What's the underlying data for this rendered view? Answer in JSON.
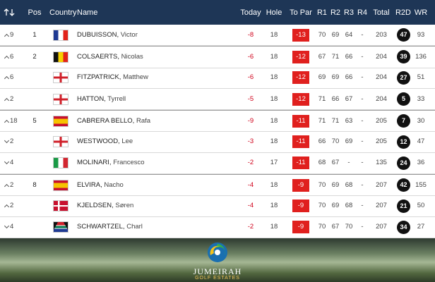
{
  "columns": [
    "Pos",
    "Country",
    "Name",
    "Today",
    "Hole",
    "To Par",
    "R1",
    "R2",
    "R3",
    "R4",
    "Total",
    "R2D",
    "WR"
  ],
  "rows": [
    {
      "trend": "up",
      "move": "9",
      "pos": "1",
      "flag": "fr",
      "surname": "DUBUISSON,",
      "given": "Victor",
      "today": "-8",
      "hole": "18",
      "to_par": "-13",
      "rounds": [
        "70",
        "69",
        "64",
        "-"
      ],
      "total": "203",
      "r2d": "47",
      "wr": "93"
    },
    {
      "trend": "up",
      "move": "6",
      "pos": "2",
      "flag": "be",
      "surname": "COLSAERTS,",
      "given": "Nicolas",
      "today": "-6",
      "hole": "18",
      "to_par": "-12",
      "rounds": [
        "67",
        "71",
        "66",
        "-"
      ],
      "total": "204",
      "r2d": "39",
      "wr": "136"
    },
    {
      "trend": "up",
      "move": "6",
      "flag": "en",
      "surname": "FITZPATRICK,",
      "given": "Matthew",
      "today": "-6",
      "hole": "18",
      "to_par": "-12",
      "rounds": [
        "69",
        "69",
        "66",
        "-"
      ],
      "total": "204",
      "r2d": "27",
      "wr": "51"
    },
    {
      "trend": "up",
      "move": "2",
      "flag": "en",
      "surname": "HATTON,",
      "given": "Tyrrell",
      "today": "-5",
      "hole": "18",
      "to_par": "-12",
      "rounds": [
        "71",
        "66",
        "67",
        "-"
      ],
      "total": "204",
      "r2d": "5",
      "wr": "33"
    },
    {
      "trend": "up",
      "move": "18",
      "pos": "5",
      "flag": "es",
      "surname": "CABRERA BELLO,",
      "given": "Rafa",
      "today": "-9",
      "hole": "18",
      "to_par": "-11",
      "rounds": [
        "71",
        "71",
        "63",
        "-"
      ],
      "total": "205",
      "r2d": "7",
      "wr": "30"
    },
    {
      "trend": "down",
      "move": "2",
      "flag": "en",
      "surname": "WESTWOOD,",
      "given": "Lee",
      "today": "-3",
      "hole": "18",
      "to_par": "-11",
      "rounds": [
        "66",
        "70",
        "69",
        "-"
      ],
      "total": "205",
      "r2d": "12",
      "wr": "47"
    },
    {
      "trend": "down",
      "move": "4",
      "flag": "it",
      "surname": "MOLINARI,",
      "given": "Francesco",
      "today": "-2",
      "hole": "17",
      "to_par": "-11",
      "rounds": [
        "68",
        "67",
        "-",
        "-"
      ],
      "total": "135",
      "r2d": "24",
      "wr": "36"
    },
    {
      "trend": "up",
      "move": "2",
      "pos": "8",
      "flag": "es",
      "surname": "ELVIRA,",
      "given": "Nacho",
      "today": "-4",
      "hole": "18",
      "to_par": "-9",
      "rounds": [
        "70",
        "69",
        "68",
        "-"
      ],
      "total": "207",
      "r2d": "42",
      "wr": "155"
    },
    {
      "trend": "up",
      "move": "2",
      "flag": "dk",
      "surname": "KJELDSEN,",
      "given": "Søren",
      "today": "-4",
      "hole": "18",
      "to_par": "-9",
      "rounds": [
        "70",
        "69",
        "68",
        "-"
      ],
      "total": "207",
      "r2d": "21",
      "wr": "50"
    },
    {
      "trend": "down",
      "move": "4",
      "flag": "za",
      "surname": "SCHWARTZEL,",
      "given": "Charl",
      "today": "-2",
      "hole": "18",
      "to_par": "-9",
      "rounds": [
        "70",
        "67",
        "70",
        "-"
      ],
      "total": "207",
      "r2d": "34",
      "wr": "27"
    }
  ],
  "footer": {
    "brand": "JUMEIRAH",
    "sub": "GOLF ESTATES"
  }
}
